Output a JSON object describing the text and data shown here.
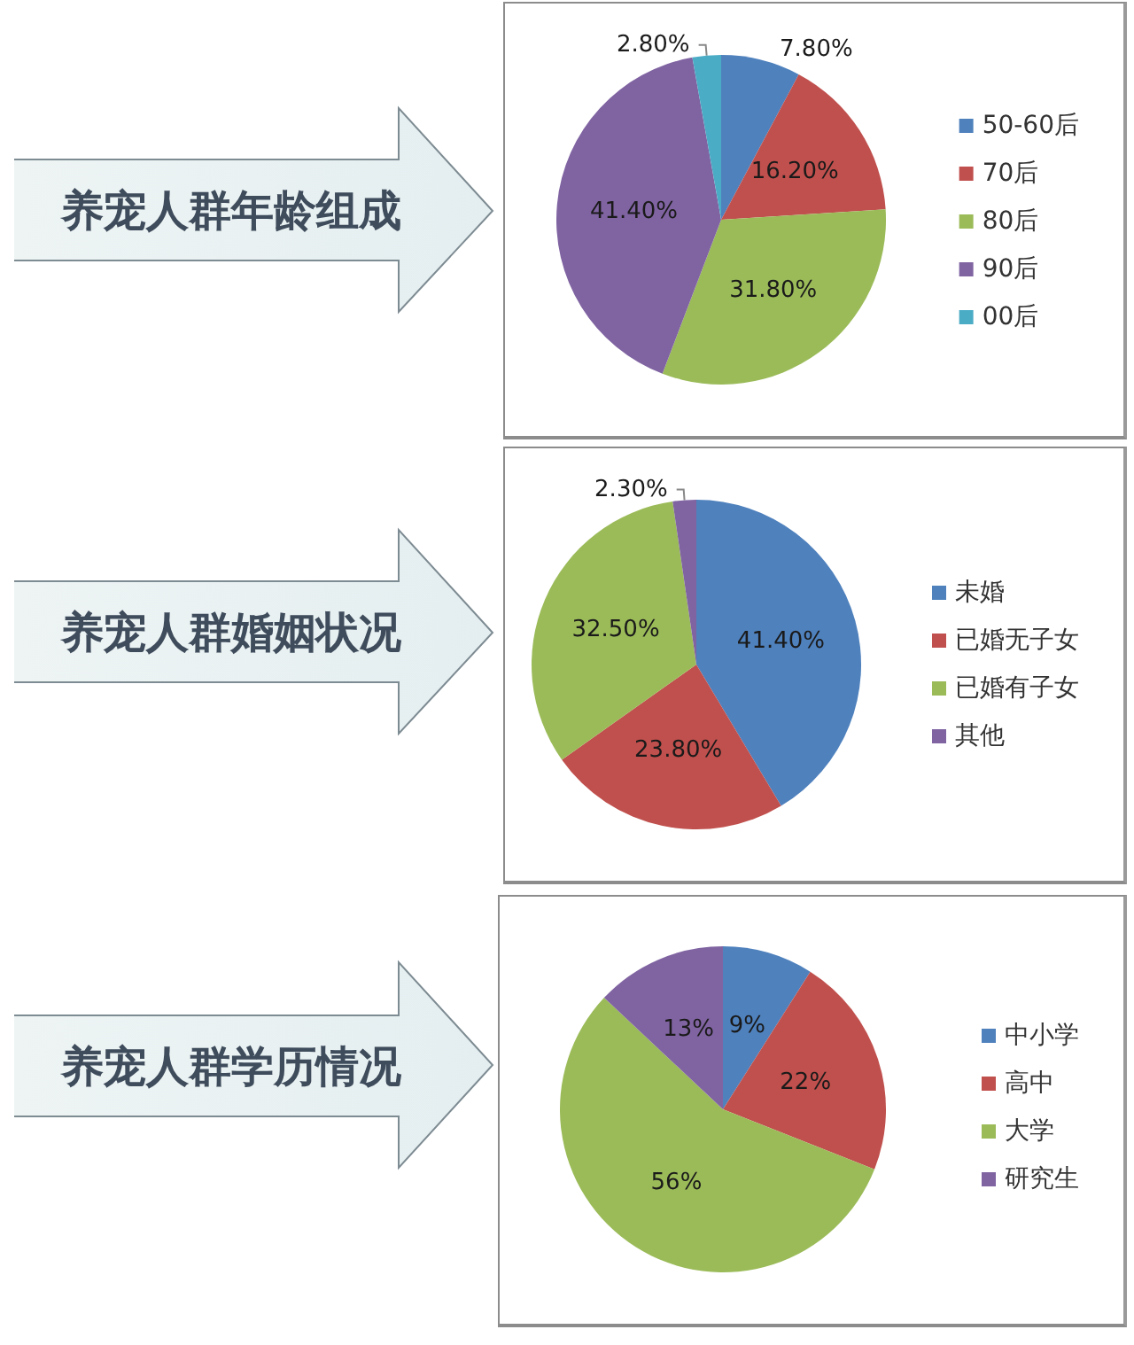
{
  "chart_data": [
    {
      "type": "pie",
      "title": "养宠人群年龄组成",
      "categories": [
        "50-60后",
        "70后",
        "80后",
        "90后",
        "00后"
      ],
      "values": [
        7.8,
        16.2,
        31.8,
        41.4,
        2.8
      ],
      "colors": [
        "#4f81bd",
        "#c0504d",
        "#9bbb59",
        "#8064a2",
        "#4bacc6"
      ],
      "value_labels": [
        "7.80%",
        "16.20%",
        "31.80%",
        "41.40%",
        "2.80%"
      ],
      "legend": "right"
    },
    {
      "type": "pie",
      "title": "养宠人群婚姻状况",
      "categories": [
        "未婚",
        "已婚无子女",
        "已婚有子女",
        "其他"
      ],
      "values": [
        41.4,
        23.8,
        32.5,
        2.3
      ],
      "colors": [
        "#4f81bd",
        "#c0504d",
        "#9bbb59",
        "#8064a2"
      ],
      "value_labels": [
        "41.40%",
        "23.80%",
        "32.50%",
        "2.30%"
      ],
      "legend": "right"
    },
    {
      "type": "pie",
      "title": "养宠人群学历情况",
      "categories": [
        "中小学",
        "高中",
        "大学",
        "研究生"
      ],
      "values": [
        9,
        22,
        56,
        13
      ],
      "colors": [
        "#4f81bd",
        "#c0504d",
        "#9bbb59",
        "#8064a2"
      ],
      "value_labels": [
        "9%",
        "22%",
        "56%",
        "13%"
      ],
      "legend": "right"
    }
  ]
}
